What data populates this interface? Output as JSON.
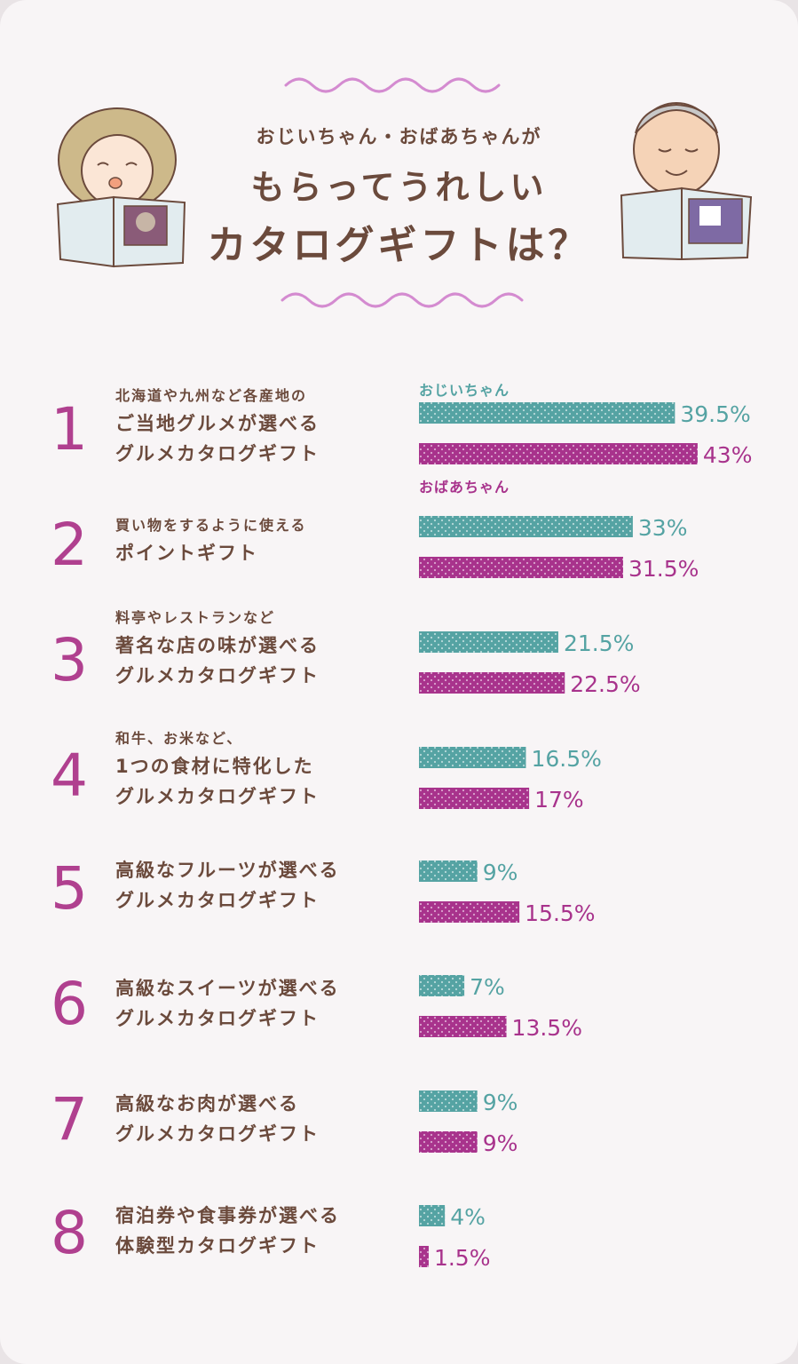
{
  "header": {
    "line1": "おじいちゃん・おばあちゃんが",
    "line2": "もらってうれしい",
    "line3": "カタログギフトは？"
  },
  "colors": {
    "grandpa": "#55a3a3",
    "grandma": "#a8338c",
    "rank": "#b0408f",
    "text": "#6b4a3c"
  },
  "chart_data": {
    "type": "bar",
    "orientation": "horizontal",
    "series_names": [
      "おじいちゃん",
      "おばあちゃん"
    ],
    "categories": [
      {
        "rank": "1",
        "line1": "北海道や九州など各産地の",
        "line2": "ご当地グルメが選べる",
        "line3": "グルメカタログギフト"
      },
      {
        "rank": "2",
        "line1": "買い物をするように使える",
        "line2": "ポイントギフト",
        "line3": ""
      },
      {
        "rank": "3",
        "line1": "料亭やレストランなど",
        "line2": "著名な店の味が選べる",
        "line3": "グルメカタログギフト"
      },
      {
        "rank": "4",
        "line1": "和牛、お米など、",
        "line2": "1つの食材に特化した",
        "line3": "グルメカタログギフト"
      },
      {
        "rank": "5",
        "line1": "",
        "line2": "高級なフルーツが選べる",
        "line3": "グルメカタログギフト"
      },
      {
        "rank": "6",
        "line1": "",
        "line2": "高級なスイーツが選べる",
        "line3": "グルメカタログギフト"
      },
      {
        "rank": "7",
        "line1": "",
        "line2": "高級なお肉が選べる",
        "line3": "グルメカタログギフト"
      },
      {
        "rank": "8",
        "line1": "",
        "line2": "宿泊券や食事券が選べる",
        "line3": "体験型カタログギフト"
      }
    ],
    "series": [
      {
        "name": "おじいちゃん",
        "values": [
          39.5,
          33,
          21.5,
          16.5,
          9,
          7,
          9,
          4
        ],
        "labels": [
          "39.5%",
          "33%",
          "21.5%",
          "16.5%",
          "9%",
          "7%",
          "9%",
          "4%"
        ]
      },
      {
        "name": "おばあちゃん",
        "values": [
          43,
          31.5,
          22.5,
          17,
          15.5,
          13.5,
          9,
          1.5
        ],
        "labels": [
          "43%",
          "31.5%",
          "22.5%",
          "17%",
          "15.5%",
          "13.5%",
          "9%",
          "1.5%"
        ]
      }
    ]
  }
}
